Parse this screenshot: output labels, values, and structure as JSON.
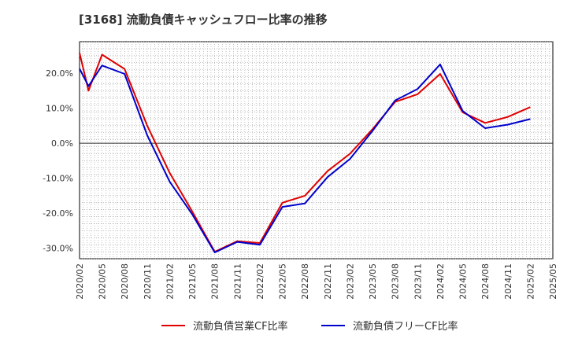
{
  "title": "[3168]  流動負債キャッシュフロー比率の推移",
  "chart_data": {
    "type": "line",
    "title": "[3168]  流動負債キャッシュフロー比率の推移",
    "xlabel": "",
    "ylabel": "",
    "ylim": [
      -33,
      29
    ],
    "yticks": [
      20,
      10,
      0,
      -10,
      -20,
      -30
    ],
    "ytick_labels": [
      "20.0%",
      "10.0%",
      "0.0%",
      "-10.0%",
      "-20.0%",
      "-30.0%"
    ],
    "categories": [
      "2020/02",
      "2020/05",
      "2020/08",
      "2020/11",
      "2021/02",
      "2021/05",
      "2021/08",
      "2021/11",
      "2022/02",
      "2022/05",
      "2022/08",
      "2022/11",
      "2023/02",
      "2023/05",
      "2023/08",
      "2023/11",
      "2024/02",
      "2024/05",
      "2024/08",
      "2024/11",
      "2025/02",
      "2025/05"
    ],
    "grid": true,
    "legend_position": "bottom",
    "series": [
      {
        "name": "流動負債営業CF比率",
        "color": "#e00000",
        "values": [
          25.8,
          25.3,
          21.2,
          5.0,
          -8.5,
          -19.5,
          -31.0,
          -28.0,
          -28.5,
          -17.0,
          -15.0,
          -8.0,
          -3.0,
          4.0,
          11.8,
          14.0,
          19.8,
          8.8,
          5.8,
          7.5,
          10.3,
          null
        ],
        "extra": [
          {
            "x": 0.4,
            "value": 15.0
          }
        ]
      },
      {
        "name": "流動負債フリーCF比率",
        "color": "#0000cc",
        "values": [
          21.3,
          22.2,
          19.8,
          2.3,
          -11.0,
          -20.3,
          -31.2,
          -28.2,
          -29.0,
          -18.2,
          -17.2,
          -9.7,
          -4.5,
          3.5,
          12.2,
          15.5,
          22.5,
          9.2,
          4.3,
          5.3,
          6.9,
          null
        ],
        "extra": [
          {
            "x": 0.4,
            "value": 16.3
          }
        ]
      }
    ]
  }
}
